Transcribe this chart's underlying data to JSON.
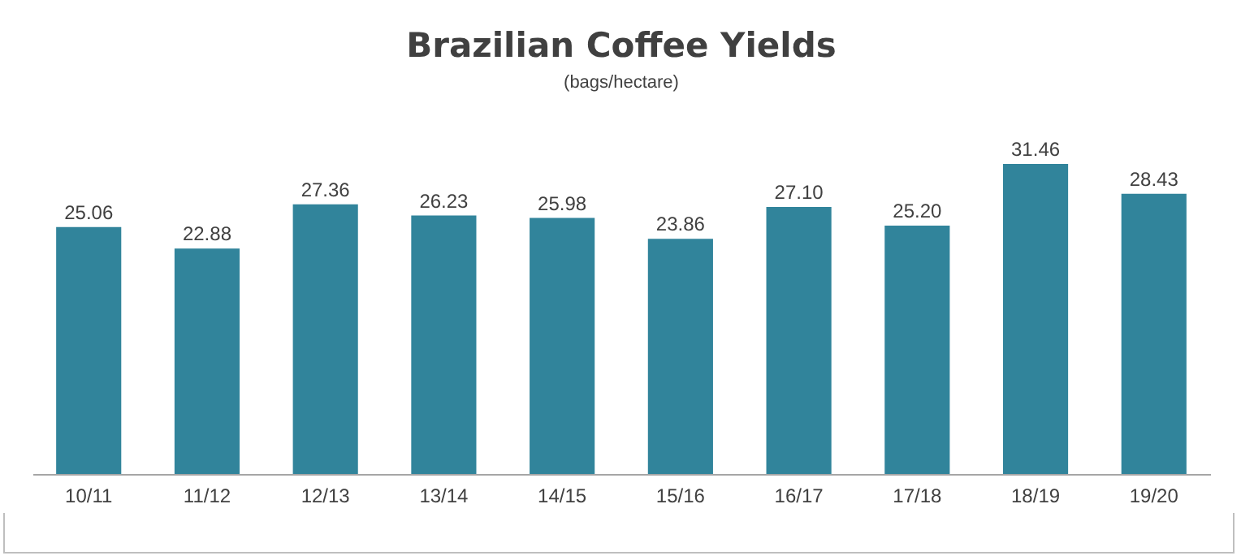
{
  "chart_data": {
    "type": "bar",
    "title": "Brazilian Coffee Yields",
    "subtitle": "(bags/hectare)",
    "categories": [
      "10/11",
      "11/12",
      "12/13",
      "13/14",
      "14/15",
      "15/16",
      "16/17",
      "17/18",
      "18/19",
      "19/20"
    ],
    "values": [
      25.06,
      22.88,
      27.36,
      26.23,
      25.98,
      23.86,
      27.1,
      25.2,
      31.46,
      28.43
    ],
    "color": "#31849b",
    "data_labels": true,
    "value_labels": [
      "25.06",
      "22.88",
      "27.36",
      "26.23",
      "25.98",
      "23.86",
      "27.10",
      "25.20",
      "31.46",
      "28.43"
    ]
  }
}
